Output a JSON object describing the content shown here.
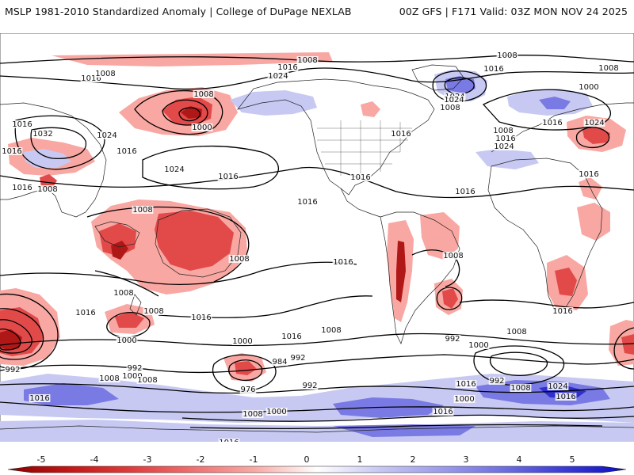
{
  "header": {
    "title_left": "MSLP 1981-2010 Standardized Anomaly | College of DuPage NEXLAB",
    "title_right": "00Z GFS | F171 Valid: 03Z MON NOV 24 2025"
  },
  "legend": {
    "ticks": [
      "-5",
      "-4",
      "-3",
      "-2",
      "-1",
      "0",
      "1",
      "2",
      "3",
      "4",
      "5"
    ],
    "colors": [
      "#8b0000",
      "#c41616",
      "#e03c3c",
      "#f07070",
      "#f9aaa6",
      "#ffffff",
      "#c8c8f4",
      "#9c9cec",
      "#6f6fe2",
      "#3a3ad6",
      "#0c0cc4"
    ]
  },
  "map": {
    "anomaly_colors": {
      "neg_strong": "#b01818",
      "neg_mid": "#e24a4a",
      "neg_weak": "#f9a7a2",
      "pos_weak": "#c7c9f2",
      "pos_mid": "#7a7ae4",
      "pos_strong": "#2f2fd0"
    },
    "isobar_labels": [
      {
        "id": "l1008a",
        "text": "1008"
      },
      {
        "id": "l1008b",
        "text": "1008"
      },
      {
        "id": "l1016a",
        "text": "1016"
      },
      {
        "id": "l1016b",
        "text": "1016"
      },
      {
        "id": "l1024a",
        "text": "1024"
      },
      {
        "id": "l1016c",
        "text": "1016"
      },
      {
        "id": "l1032",
        "text": "1032"
      },
      {
        "id": "l1024b",
        "text": "1024"
      },
      {
        "id": "l1024c",
        "text": "1024"
      },
      {
        "id": "l1016d",
        "text": "1016"
      },
      {
        "id": "l1016e",
        "text": "1016"
      },
      {
        "id": "l1000a",
        "text": "1000"
      },
      {
        "id": "l1008c",
        "text": "1008"
      },
      {
        "id": "l1024d",
        "text": "1024"
      },
      {
        "id": "l1016f",
        "text": "1016"
      },
      {
        "id": "l1016g",
        "text": "1016"
      },
      {
        "id": "l1016h",
        "text": "1016"
      },
      {
        "id": "l1008d",
        "text": "1008"
      },
      {
        "id": "l1008e",
        "text": "1008"
      },
      {
        "id": "l1016i",
        "text": "1016"
      },
      {
        "id": "l1008f",
        "text": "1008"
      },
      {
        "id": "l1008g",
        "text": "1008"
      },
      {
        "id": "l1016j",
        "text": "1016"
      },
      {
        "id": "l1008h",
        "text": "1008"
      },
      {
        "id": "l1000b",
        "text": "1000"
      },
      {
        "id": "l1016k",
        "text": "1016"
      },
      {
        "id": "l1000c",
        "text": "1000"
      },
      {
        "id": "l1016l",
        "text": "1016"
      },
      {
        "id": "l1008i",
        "text": "1008"
      },
      {
        "id": "l992a",
        "text": "992"
      },
      {
        "id": "l992b",
        "text": "992"
      },
      {
        "id": "l1008j",
        "text": "1008"
      },
      {
        "id": "l1000d",
        "text": "1000"
      },
      {
        "id": "l984",
        "text": "984"
      },
      {
        "id": "l992c",
        "text": "992"
      },
      {
        "id": "l976",
        "text": "976"
      },
      {
        "id": "l992d",
        "text": "992"
      },
      {
        "id": "l1016m",
        "text": "1016"
      },
      {
        "id": "l1008k",
        "text": "1008"
      },
      {
        "id": "l1000e",
        "text": "1000"
      },
      {
        "id": "l992e",
        "text": "992"
      },
      {
        "id": "l1000f",
        "text": "1000"
      },
      {
        "id": "l1008l",
        "text": "1008"
      },
      {
        "id": "l1016n",
        "text": "1016"
      },
      {
        "id": "l992f",
        "text": "992"
      },
      {
        "id": "l1008m",
        "text": "1008"
      },
      {
        "id": "l1024e",
        "text": "1024"
      },
      {
        "id": "l1016o",
        "text": "1016"
      },
      {
        "id": "l1000g",
        "text": "1000"
      },
      {
        "id": "l1008n",
        "text": "1008"
      },
      {
        "id": "l1024f",
        "text": "1024"
      },
      {
        "id": "l1016p",
        "text": "1016"
      },
      {
        "id": "l1008o",
        "text": "1008"
      },
      {
        "id": "l1016q",
        "text": "1016"
      },
      {
        "id": "l1024g",
        "text": "1024"
      },
      {
        "id": "l1000h",
        "text": "1000"
      },
      {
        "id": "l1008p",
        "text": "1008"
      },
      {
        "id": "l1016r",
        "text": "1016"
      },
      {
        "id": "l1016s",
        "text": "1016"
      },
      {
        "id": "l1016t",
        "text": "1016"
      },
      {
        "id": "l1016u",
        "text": "1016"
      },
      {
        "id": "l1008q",
        "text": "1008"
      },
      {
        "id": "l1016v",
        "text": "1016"
      },
      {
        "id": "l1024h",
        "text": "1024"
      },
      {
        "id": "l1008r",
        "text": "1008"
      },
      {
        "id": "l1016w",
        "text": "1016"
      },
      {
        "id": "l1008s",
        "text": "1008"
      },
      {
        "id": "l1016x",
        "text": "1016"
      },
      {
        "id": "l1016y",
        "text": "1016"
      }
    ]
  }
}
